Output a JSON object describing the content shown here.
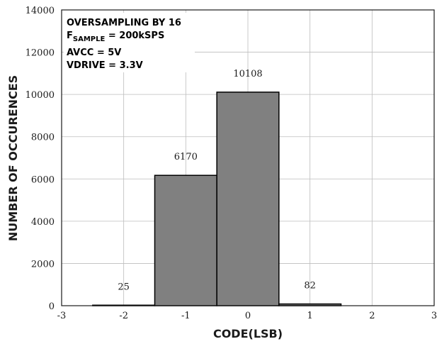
{
  "chart_data": {
    "type": "bar",
    "categories": [
      -2,
      -1,
      0,
      1
    ],
    "values": [
      25,
      6170,
      10108,
      82
    ],
    "data_labels": [
      "25",
      "6170",
      "10108",
      "82"
    ],
    "xlabel": "CODE(LSB)",
    "ylabel": "NUMBER OF OCCURENCES",
    "xlim": [
      -3,
      3
    ],
    "ylim": [
      0,
      14000
    ],
    "x_ticks": [
      "-3",
      "-2",
      "-1",
      "0",
      "1",
      "2",
      "3"
    ],
    "y_ticks": [
      "0",
      "2000",
      "4000",
      "6000",
      "8000",
      "10000",
      "12000",
      "14000"
    ],
    "grid": true,
    "bar_color": "#808080",
    "annotation": {
      "line1": "OVERSAMPLING BY 16",
      "line2_main": "F",
      "line2_sub": "SAMPLE",
      "line2_rest": " = 200kSPS",
      "line3": "AVCC = 5V",
      "line4": "VDRIVE = 3.3V"
    }
  }
}
